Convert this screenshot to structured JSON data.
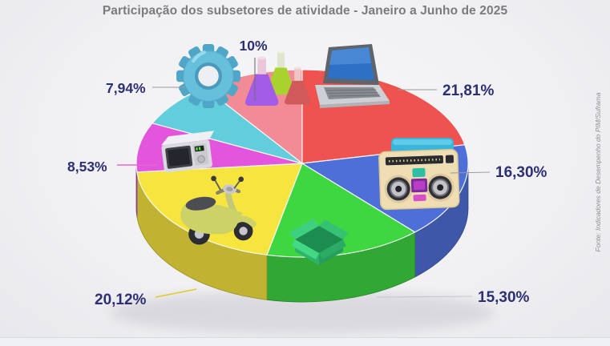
{
  "title": "Participação dos subsetores de atividade - Janeiro a Junho de 2025",
  "source_note": "Fonte: Indicadores de Desempenho do PIM/Suframa",
  "chart_data": {
    "type": "pie",
    "style": "3d",
    "title": "Participação dos subsetores de atividade - Janeiro a Junho de 2025",
    "unit": "%",
    "label_color": "#2e2e74",
    "start_angle_deg": -36,
    "clockwise": true,
    "slices": [
      {
        "icon": "laptop-icon",
        "label": "21,81%",
        "value": 21.81,
        "color": "#ee5350"
      },
      {
        "icon": "boombox-icon",
        "label": "16,30%",
        "value": 16.3,
        "color": "#4f6fd8"
      },
      {
        "icon": "open-box-icon",
        "label": "15,30%",
        "value": 15.3,
        "color": "#3fd741"
      },
      {
        "icon": "scooter-icon",
        "label": "20,12%",
        "value": 20.12,
        "color": "#f6e53f"
      },
      {
        "icon": "microwave-icon",
        "label": "8,53%",
        "value": 8.53,
        "color": "#e455dd"
      },
      {
        "icon": "gear-icon",
        "label": "7,94%",
        "value": 7.94,
        "color": "#62cddd"
      },
      {
        "icon": "flasks-icon",
        "label": "10%",
        "value": 10.0,
        "color": "#f28b95"
      }
    ]
  }
}
